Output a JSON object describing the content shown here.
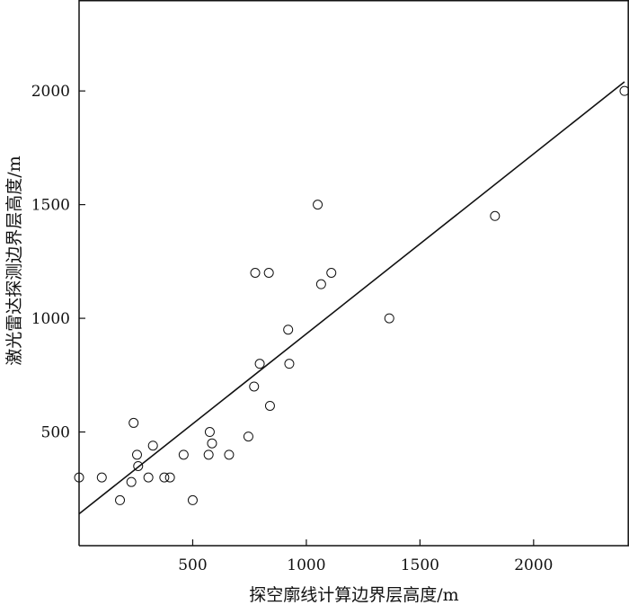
{
  "chart_data": {
    "type": "scatter",
    "title": "",
    "xlabel": "探空廓线计算边界层高度/m",
    "ylabel": "激光雷达探测边界层高度/m",
    "xlim": [
      0,
      2400
    ],
    "ylim": [
      0,
      2400
    ],
    "xticks": [
      500,
      1000,
      1500,
      2000
    ],
    "yticks": [
      500,
      1000,
      1500,
      2000
    ],
    "grid": false,
    "legend": "none",
    "marker": "open-circle",
    "colors": {
      "marker": "#111111",
      "line": "#111111",
      "axis": "#111111"
    },
    "series": [
      {
        "points": [
          {
            "x": 0,
            "y": 300
          },
          {
            "x": 100,
            "y": 300
          },
          {
            "x": 180,
            "y": 200
          },
          {
            "x": 230,
            "y": 280
          },
          {
            "x": 240,
            "y": 540
          },
          {
            "x": 255,
            "y": 400
          },
          {
            "x": 260,
            "y": 350
          },
          {
            "x": 305,
            "y": 300
          },
          {
            "x": 325,
            "y": 440
          },
          {
            "x": 375,
            "y": 300
          },
          {
            "x": 400,
            "y": 300
          },
          {
            "x": 460,
            "y": 400
          },
          {
            "x": 500,
            "y": 200
          },
          {
            "x": 570,
            "y": 400
          },
          {
            "x": 575,
            "y": 500
          },
          {
            "x": 585,
            "y": 450
          },
          {
            "x": 660,
            "y": 400
          },
          {
            "x": 745,
            "y": 480
          },
          {
            "x": 770,
            "y": 700
          },
          {
            "x": 775,
            "y": 1200
          },
          {
            "x": 795,
            "y": 800
          },
          {
            "x": 835,
            "y": 1200
          },
          {
            "x": 840,
            "y": 615
          },
          {
            "x": 920,
            "y": 950
          },
          {
            "x": 925,
            "y": 800
          },
          {
            "x": 1050,
            "y": 1500
          },
          {
            "x": 1065,
            "y": 1150
          },
          {
            "x": 1110,
            "y": 1200
          },
          {
            "x": 1365,
            "y": 1000
          },
          {
            "x": 1830,
            "y": 1450
          },
          {
            "x": 2400,
            "y": 2000
          }
        ]
      }
    ],
    "fit_line": {
      "x": [
        0,
        2400
      ],
      "y": [
        140,
        2040
      ]
    }
  }
}
